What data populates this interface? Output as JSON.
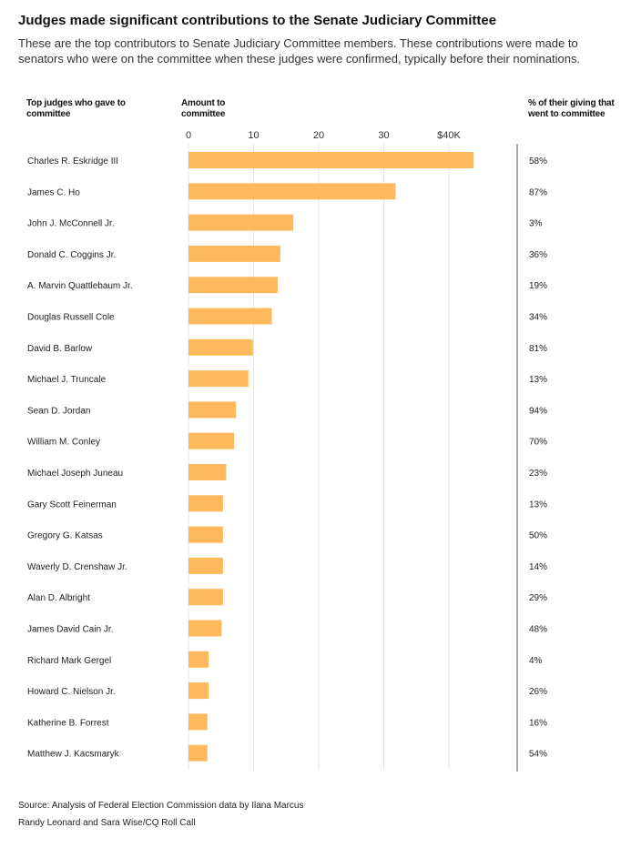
{
  "title": "Judges made significant contributions to the Senate Judiciary Committee",
  "subtitle": "These are the top contributors to Senate Judiciary Committee members. These contributions were made to senators who were on the committee when these judges were confirmed, typically before their nominations.",
  "columns": {
    "judges_header": "Top judges who gave to committee",
    "amount_header": "Amount to committee",
    "pct_header": "% of their giving that went to committee"
  },
  "source_line1": "Source: Analysis of Federal Election Commission data by Ilana Marcus",
  "source_line2": "Randy Leonard and Sara Wise/CQ Roll Call",
  "colors": {
    "bar": "#ffb85c",
    "grid": "#e6e6e6",
    "divider": "#555555"
  },
  "chart_data": {
    "type": "bar",
    "orientation": "horizontal",
    "xlim": [
      0,
      40000
    ],
    "x_ticks": [
      0,
      10000,
      20000,
      30000,
      40000
    ],
    "x_tick_labels": [
      "0",
      "10",
      "20",
      "30",
      "$40K"
    ],
    "grid": true,
    "categories": [
      "Charles R. Eskridge III",
      "James C. Ho",
      "John J. McConnell Jr.",
      "Donald C. Coggins Jr.",
      "A. Marvin Quattlebaum Jr.",
      "Douglas Russell Cole",
      "David B. Barlow",
      "Michael J. Truncale",
      "Sean D. Jordan",
      "William M. Conley",
      "Michael Joseph Juneau",
      "Gary Scott Feinerman",
      "Gregory G. Katsas",
      "Waverly D. Crenshaw Jr.",
      "Alan D. Albright",
      "James David Cain Jr.",
      "Richard Mark Gergel",
      "Howard C. Nielson Jr.",
      "Katherine B. Forrest",
      "Matthew J. Kacsmaryk"
    ],
    "values": [
      43800,
      31800,
      16100,
      14100,
      13700,
      12800,
      9900,
      9200,
      7300,
      7000,
      5800,
      5300,
      5300,
      5300,
      5300,
      5100,
      3100,
      3100,
      2900,
      2900
    ],
    "pct_labels": [
      "58%",
      "87%",
      "3%",
      "36%",
      "19%",
      "34%",
      "81%",
      "13%",
      "94%",
      "70%",
      "23%",
      "13%",
      "50%",
      "14%",
      "29%",
      "48%",
      "4%",
      "26%",
      "16%",
      "54%"
    ]
  }
}
